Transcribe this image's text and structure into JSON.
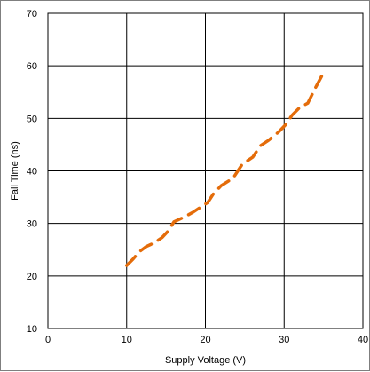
{
  "chart_data": {
    "type": "line",
    "title": "",
    "xlabel": "Supply Voltage (V)",
    "ylabel": "Fall Time (ns)",
    "xlim": [
      0,
      40
    ],
    "ylim": [
      10,
      70
    ],
    "x_ticks": [
      0,
      10,
      20,
      30,
      40
    ],
    "y_ticks": [
      10,
      20,
      30,
      40,
      50,
      60,
      70
    ],
    "grid": true,
    "legend": "none",
    "series": [
      {
        "color": "#e46c0a",
        "line_style": "dashed",
        "x": [
          10,
          10.8,
          11.6,
          12.5,
          13.5,
          14.5,
          15.3,
          16,
          17.3,
          18.5,
          19.5,
          20.3,
          21,
          22,
          23.5,
          24.7,
          26,
          27,
          28,
          29.3,
          30.2,
          31,
          32,
          33,
          34,
          35
        ],
        "y": [
          22,
          23.2,
          24.6,
          25.6,
          26.3,
          27.3,
          28.6,
          30.3,
          31.2,
          32.2,
          33.2,
          34,
          35.6,
          37.2,
          38.6,
          41.3,
          42.6,
          44.8,
          45.8,
          47.4,
          48.8,
          50.6,
          52.1,
          52.9,
          55.9,
          58.7
        ]
      }
    ]
  }
}
